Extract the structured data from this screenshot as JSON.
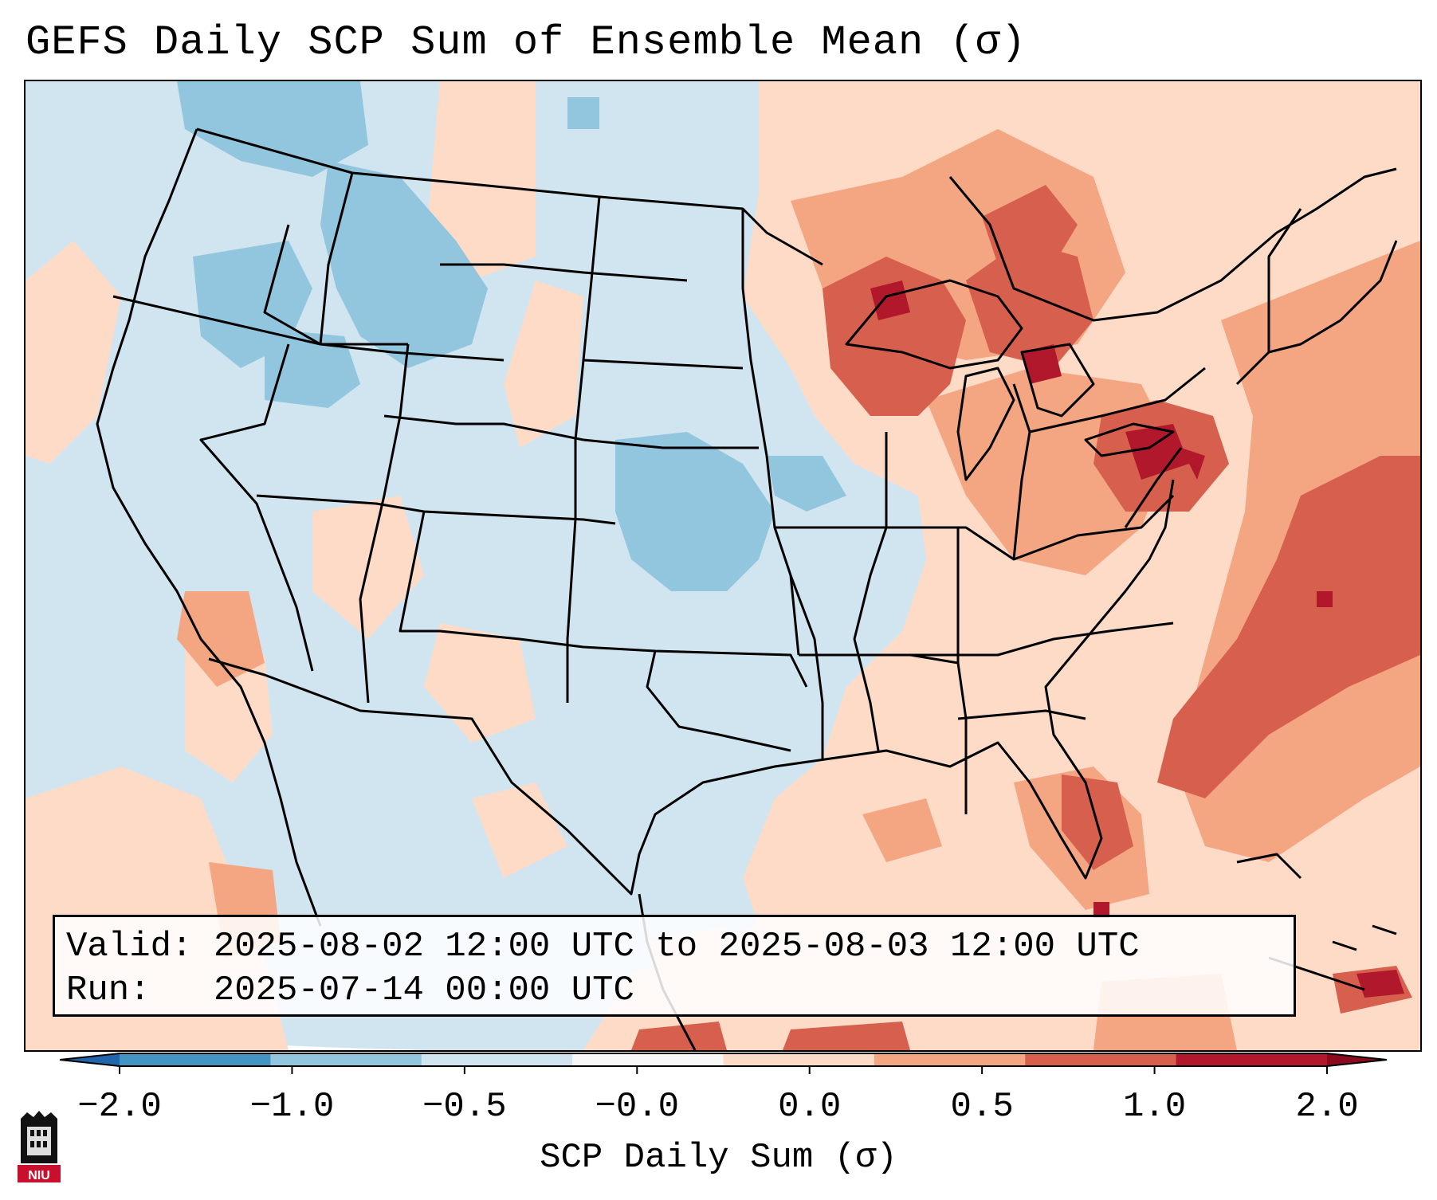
{
  "title": "GEFS Daily SCP Sum of Ensemble Mean (σ)",
  "info_box": {
    "valid_label": "Valid:",
    "valid_value": "2025-08-02 12:00 UTC to 2025-08-03 12:00 UTC",
    "run_label": "Run:",
    "run_value": "2025-07-14 00:00 UTC"
  },
  "colorbar": {
    "label": "SCP Daily Sum (σ)",
    "ticks": [
      "−2.0",
      "−1.0",
      "−0.5",
      "−0.0",
      "0.0",
      "0.5",
      "1.0",
      "2.0"
    ],
    "colors": [
      "#4393c3",
      "#92c5de",
      "#d1e5f0",
      "#f7f7f7",
      "#fddbc7",
      "#f4a582",
      "#d6604d",
      "#b2182b"
    ],
    "extend": "both"
  },
  "logo": {
    "text": "NIU"
  }
}
